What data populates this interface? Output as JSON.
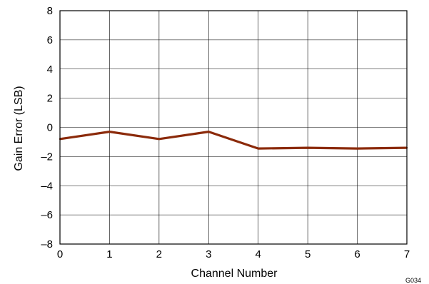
{
  "chart_data": {
    "type": "line",
    "title": "",
    "xlabel": "Channel Number",
    "ylabel": "Gain Error (LSB)",
    "xlim": [
      0,
      7
    ],
    "ylim": [
      -8,
      8
    ],
    "x_ticks": [
      0,
      1,
      2,
      3,
      4,
      5,
      6,
      7
    ],
    "x_tick_labels": [
      "0",
      "1",
      "2",
      "3",
      "4",
      "5",
      "6",
      "7"
    ],
    "y_ticks": [
      8,
      6,
      4,
      2,
      0,
      -2,
      -4,
      -6,
      -8
    ],
    "y_tick_labels": [
      "8",
      "6",
      "4",
      "2",
      "0",
      "–2",
      "–4",
      "–6",
      "–8"
    ],
    "grid": true,
    "legend": "none",
    "series": [
      {
        "color": "#8b2a0a",
        "x": [
          0,
          1,
          2,
          3,
          4,
          5,
          6,
          7
        ],
        "y": [
          -0.8,
          -0.3,
          -0.8,
          -0.3,
          -1.45,
          -1.4,
          -1.45,
          -1.4
        ]
      }
    ],
    "figure_code": "G034"
  }
}
